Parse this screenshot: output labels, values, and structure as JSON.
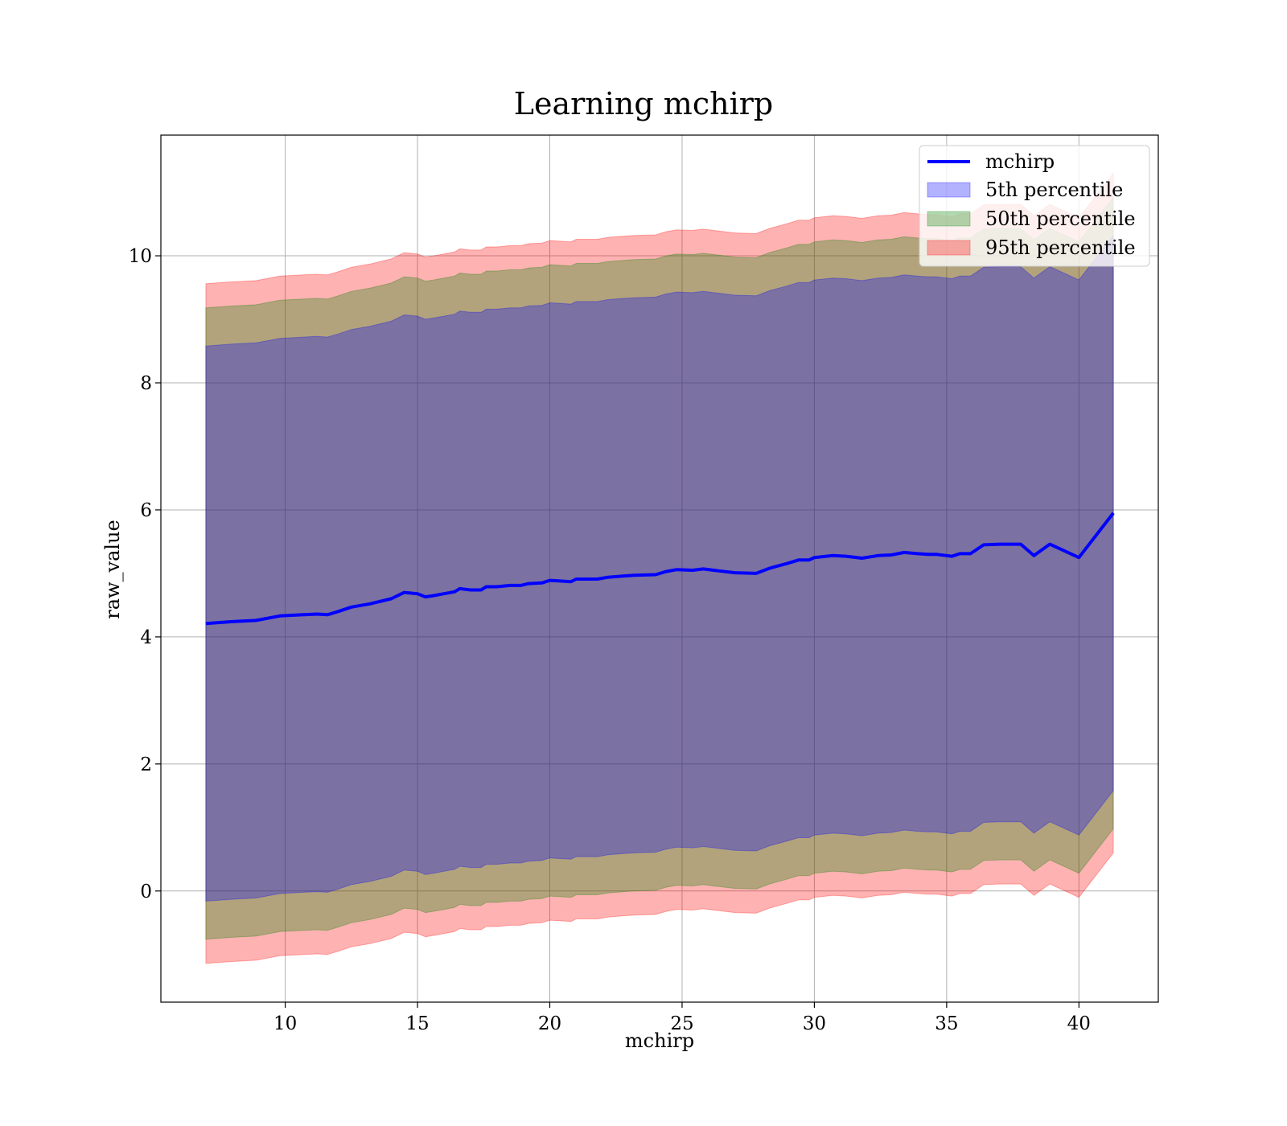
{
  "chart_data": {
    "type": "area",
    "title": "Learning mchirp",
    "xlabel": "mchirp",
    "ylabel": "raw_value",
    "xlim": [
      5.3,
      43.0
    ],
    "ylim": [
      -1.75,
      11.9
    ],
    "xticks": [
      10,
      15,
      20,
      25,
      30,
      35,
      40
    ],
    "yticks": [
      0,
      2,
      4,
      6,
      8,
      10
    ],
    "grid": true,
    "legend_position": "upper right",
    "colors": {
      "line": "#0000ff",
      "band_5": "#0000ff",
      "band_50": "#008000",
      "band_95": "#ff0000"
    },
    "x": [
      7.0,
      8.0,
      8.9,
      9.8,
      10.7,
      11.2,
      11.6,
      12.0,
      12.5,
      13.2,
      14.0,
      14.5,
      15.0,
      15.3,
      15.6,
      16.0,
      16.4,
      16.6,
      17.0,
      17.4,
      17.6,
      18.0,
      18.5,
      18.9,
      19.2,
      19.7,
      20.0,
      20.4,
      20.8,
      21.0,
      21.8,
      22.2,
      22.8,
      23.2,
      24.0,
      24.4,
      24.8,
      25.4,
      25.8,
      26.4,
      27.0,
      27.8,
      28.3,
      29.0,
      29.4,
      29.8,
      30.0,
      30.7,
      31.2,
      31.8,
      32.4,
      32.9,
      33.4,
      33.9,
      34.3,
      34.6,
      35.2,
      35.5,
      35.9,
      36.4,
      37.0,
      37.8,
      38.3,
      38.9,
      40.0,
      41.3
    ],
    "series": [
      {
        "name": "mchirp",
        "values": [
          4.21,
          4.24,
          4.26,
          4.33,
          4.35,
          4.36,
          4.35,
          4.4,
          4.47,
          4.52,
          4.6,
          4.7,
          4.68,
          4.63,
          4.65,
          4.68,
          4.71,
          4.76,
          4.74,
          4.74,
          4.79,
          4.79,
          4.81,
          4.81,
          4.84,
          4.85,
          4.89,
          4.88,
          4.87,
          4.91,
          4.91,
          4.94,
          4.96,
          4.97,
          4.98,
          5.03,
          5.06,
          5.05,
          5.07,
          5.04,
          5.01,
          5.0,
          5.08,
          5.16,
          5.21,
          5.21,
          5.25,
          5.28,
          5.27,
          5.24,
          5.28,
          5.29,
          5.33,
          5.31,
          5.3,
          5.3,
          5.27,
          5.31,
          5.31,
          5.45,
          5.46,
          5.46,
          5.28,
          5.46,
          5.25,
          5.95
        ]
      }
    ],
    "bands": [
      {
        "name": "95th percentile",
        "half_width": 5.35
      },
      {
        "name": "50th percentile",
        "half_width": 4.97
      },
      {
        "name": "5th percentile",
        "half_width": 4.37
      }
    ],
    "legend": [
      "mchirp",
      "5th percentile",
      "50th percentile",
      "95th percentile"
    ]
  }
}
